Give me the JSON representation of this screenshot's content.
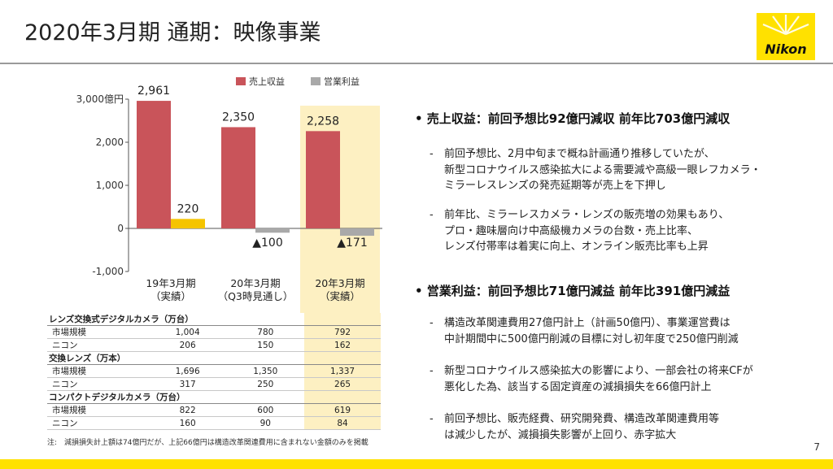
{
  "header": {
    "title": "2020年3月期 通期：映像事業",
    "logo_text": "Nikon"
  },
  "page_number": "7",
  "chart_data": {
    "type": "bar",
    "categories": [
      [
        "19年3月期",
        "（実績）"
      ],
      [
        "20年3月期",
        "（Q3時見通し）"
      ],
      [
        "20年3月期",
        "（実績）"
      ]
    ],
    "series": [
      {
        "name": "売上収益",
        "values": [
          2961,
          2350,
          2258
        ],
        "color": "#c9545a"
      },
      {
        "name": "営業利益",
        "values": [
          220,
          -100,
          -171
        ],
        "color": "#f5c400",
        "negative_color": "#a9a9a9"
      }
    ],
    "data_labels": {
      "sales": [
        "2,961",
        "2,350",
        "2,258"
      ],
      "profit": [
        "220",
        "▲100",
        "▲171"
      ]
    },
    "yticks": [
      {
        "value": 3000,
        "label": "3,000億円"
      },
      {
        "value": 2000,
        "label": "2,000"
      },
      {
        "value": 1000,
        "label": "1,000"
      },
      {
        "value": 0,
        "label": "0"
      },
      {
        "value": -1000,
        "label": "-1,000"
      }
    ],
    "ylim": [
      -1000,
      3000
    ],
    "legend_position": "top-right",
    "legend_swatch_colors": [
      "#c9545a",
      "#a9a9a9"
    ],
    "highlight_category": 2,
    "highlight_color": "#fdf0c2"
  },
  "table": {
    "sections": [
      {
        "title": "レンズ交換式デジタルカメラ（万台）",
        "rows": [
          {
            "label": "市場規模",
            "values": [
              "1,004",
              "780",
              "792"
            ]
          },
          {
            "label": "ニコン",
            "values": [
              "206",
              "150",
              "162"
            ]
          }
        ]
      },
      {
        "title": "交換レンズ（万本）",
        "rows": [
          {
            "label": "市場規模",
            "values": [
              "1,696",
              "1,350",
              "1,337"
            ]
          },
          {
            "label": "ニコン",
            "values": [
              "317",
              "250",
              "265"
            ]
          }
        ]
      },
      {
        "title": "コンパクトデジタルカメラ（万台）",
        "rows": [
          {
            "label": "市場規模",
            "values": [
              "822",
              "600",
              "619"
            ]
          },
          {
            "label": "ニコン",
            "values": [
              "160",
              "90",
              "84"
            ]
          }
        ]
      }
    ]
  },
  "note": "注:　減損損失計上額は74億円だが、上記66億円は構造改革関連費用に含まれない金額のみを掲載",
  "bullets": [
    {
      "title": "• 売上収益：前回予想比92億円減収 前年比703億円減収",
      "items": [
        {
          "lines": [
            "前回予想比、2月中旬まで概ね計画通り推移していたが、",
            "新型コロナウイルス感染拡大による需要減や高級一眼レフカメラ・",
            "ミラーレスレンズの発売延期等が売上を下押し"
          ]
        },
        {
          "lines": [
            "前年比、ミラーレスカメラ・レンズの販売増の効果もあり、",
            "プロ・趣味層向け中高級機カメラの台数・売上比率、",
            "レンズ付帯率は着実に向上、オンライン販売比率も上昇"
          ]
        }
      ]
    },
    {
      "title": "• 営業利益：前回予想比71億円減益 前年比391億円減益",
      "items": [
        {
          "lines": [
            "構造改革関連費用27億円計上（計画50億円）、事業運営費は",
            "中計期間中に500億円削減の目標に対し初年度で250億円削減"
          ]
        },
        {
          "lines": [
            "新型コロナウイルス感染拡大の影響により、一部会社の将来CFが",
            "悪化した為、該当する固定資産の減損損失を66億円計上"
          ]
        },
        {
          "lines": [
            "前回予想比、販売経費、研究開発費、構造改革関連費用等",
            "は減少したが、減損損失影響が上回り、赤字拡大"
          ]
        }
      ]
    }
  ]
}
